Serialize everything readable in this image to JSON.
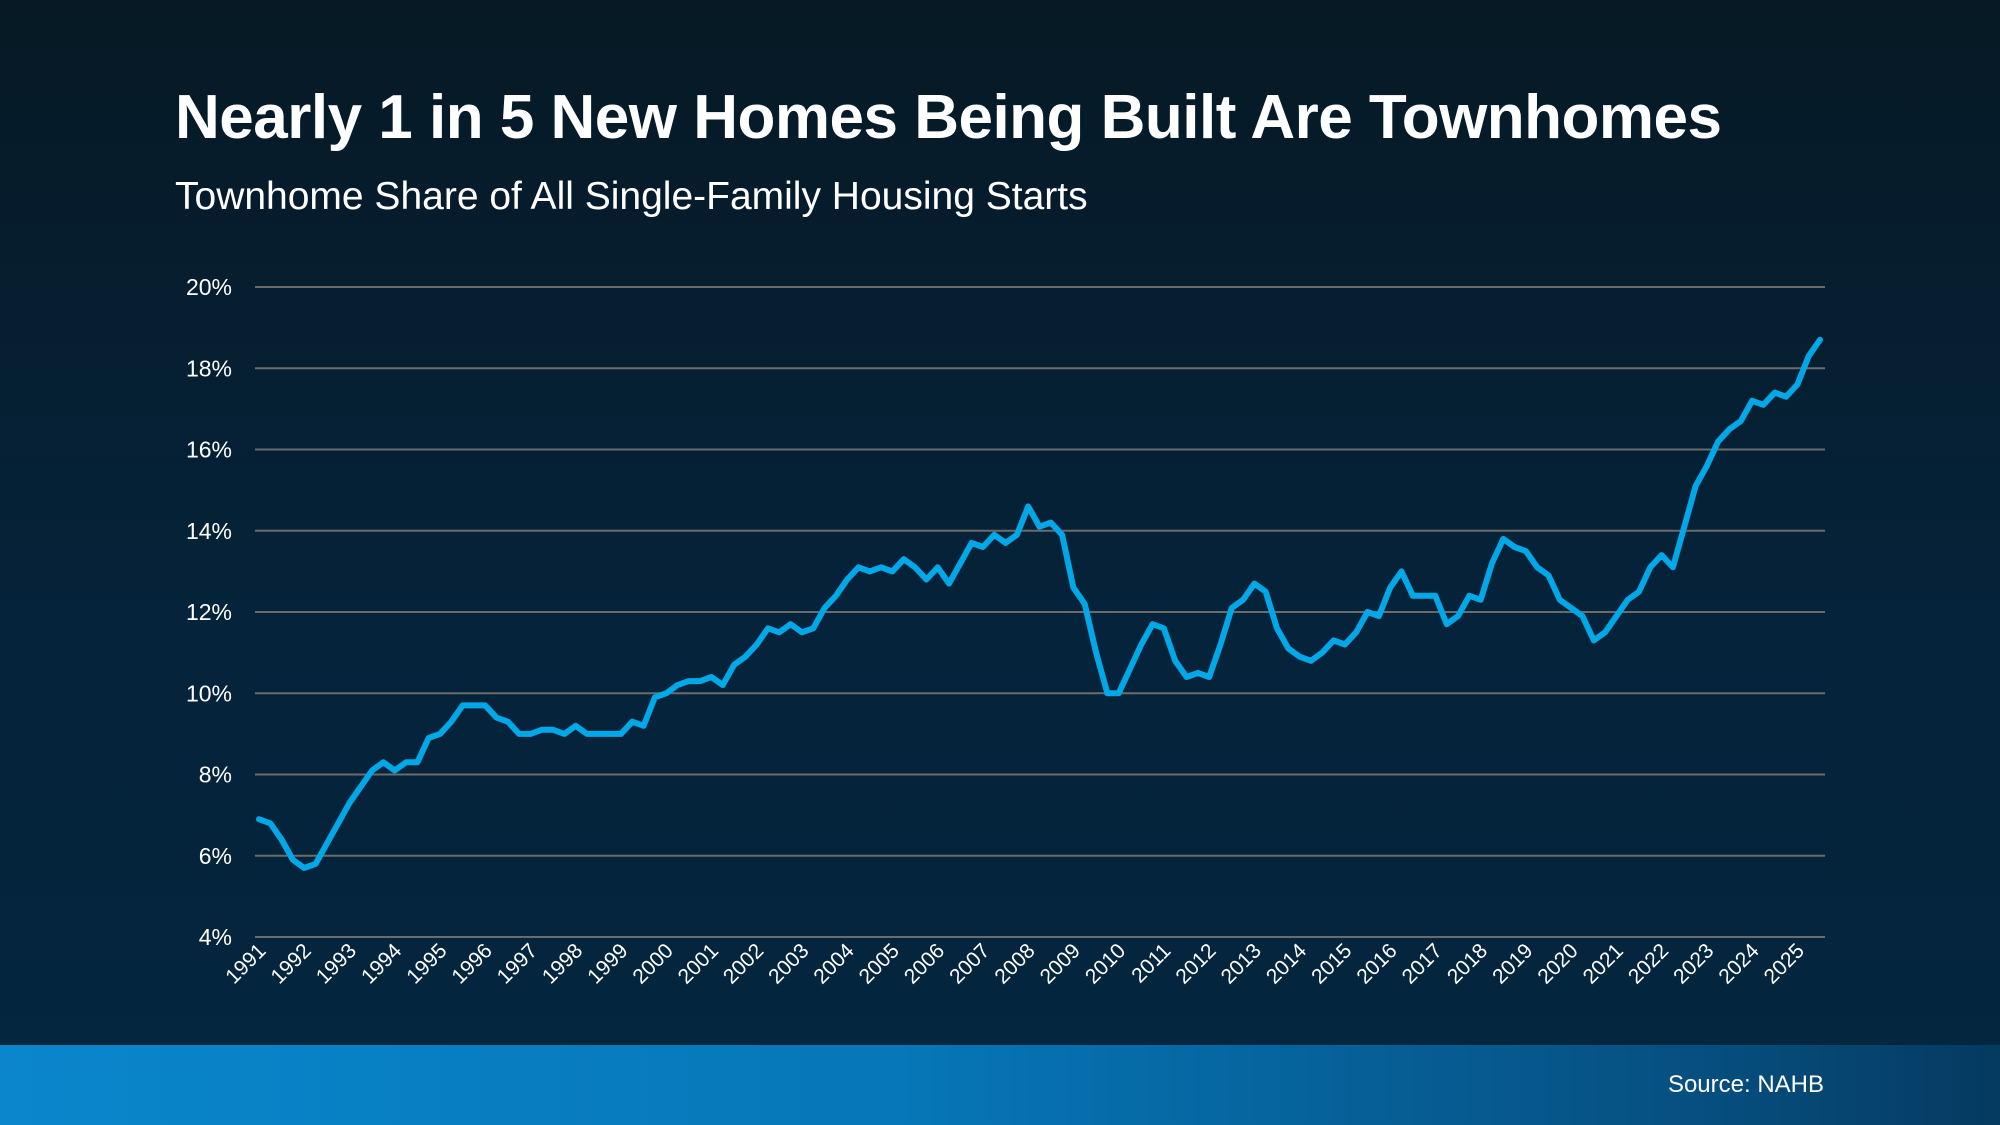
{
  "header": {
    "title": "Nearly 1 in 5 New Homes Being Built Are Townhomes",
    "subtitle": "Townhome Share of All Single-Family Housing Starts"
  },
  "footer": {
    "source": "Source: NAHB"
  },
  "colors": {
    "line": "#00a8e8",
    "grid": "#6b6b6b",
    "footer_left": "#0a86cc",
    "footer_right": "#053a60"
  },
  "chart_data": {
    "type": "line",
    "title": "Nearly 1 in 5 New Homes Being Built Are Townhomes",
    "subtitle": "Townhome Share of All Single-Family Housing Starts",
    "xlabel": "",
    "ylabel": "",
    "frequency": "quarterly",
    "start_period": "1991 Q1",
    "ylim": [
      4,
      20
    ],
    "y_ticks": [
      "4%",
      "6%",
      "8%",
      "10%",
      "12%",
      "14%",
      "16%",
      "18%",
      "20%"
    ],
    "y_tick_values": [
      4,
      6,
      8,
      10,
      12,
      14,
      16,
      18,
      20
    ],
    "x_tick_labels": [
      "1991",
      "1992",
      "1993",
      "1994",
      "1995",
      "1996",
      "1997",
      "1998",
      "1999",
      "2000",
      "2001",
      "2002",
      "2003",
      "2004",
      "2005",
      "2006",
      "2007",
      "2008",
      "2009",
      "2010",
      "2011",
      "2012",
      "2013",
      "2014",
      "2015",
      "2016",
      "2017",
      "2018",
      "2019",
      "2020",
      "2021",
      "2022",
      "2023",
      "2024",
      "2025"
    ],
    "grid": "horizontal",
    "legend": "none",
    "series": [
      {
        "values": [
          6.9,
          6.8,
          6.4,
          5.9,
          5.7,
          5.8,
          6.3,
          6.8,
          7.3,
          7.7,
          8.1,
          8.3,
          8.1,
          8.3,
          8.3,
          8.9,
          9.0,
          9.3,
          9.7,
          9.7,
          9.7,
          9.4,
          9.3,
          9.0,
          9.0,
          9.1,
          9.1,
          9.0,
          9.2,
          9.0,
          9.0,
          9.0,
          9.0,
          9.3,
          9.2,
          9.9,
          10.0,
          10.2,
          10.3,
          10.3,
          10.4,
          10.2,
          10.7,
          10.9,
          11.2,
          11.6,
          11.5,
          11.7,
          11.5,
          11.6,
          12.1,
          12.4,
          12.8,
          13.1,
          13.0,
          13.1,
          13.0,
          13.3,
          13.1,
          12.8,
          13.1,
          12.7,
          13.2,
          13.7,
          13.6,
          13.9,
          13.7,
          13.9,
          14.6,
          14.1,
          14.2,
          13.9,
          12.6,
          12.2,
          11.0,
          10.0,
          10.0,
          10.6,
          11.2,
          11.7,
          11.6,
          10.8,
          10.4,
          10.5,
          10.4,
          11.2,
          12.1,
          12.3,
          12.7,
          12.5,
          11.6,
          11.1,
          10.9,
          10.8,
          11.0,
          11.3,
          11.2,
          11.5,
          12.0,
          11.9,
          12.6,
          13.0,
          12.4,
          12.4,
          12.4,
          11.7,
          11.9,
          12.4,
          12.3,
          13.2,
          13.8,
          13.6,
          13.5,
          13.1,
          12.9,
          12.3,
          12.1,
          11.9,
          11.3,
          11.5,
          11.9,
          12.3,
          12.5,
          13.1,
          13.4,
          13.1,
          14.1,
          15.1,
          15.6,
          16.2,
          16.5,
          16.7,
          17.2,
          17.1,
          17.4,
          17.3,
          17.6,
          18.3,
          18.7
        ]
      }
    ]
  }
}
